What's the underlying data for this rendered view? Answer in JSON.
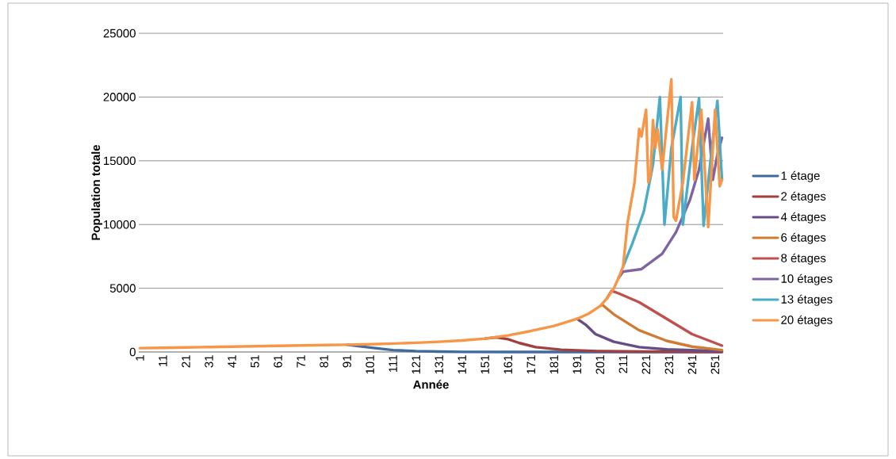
{
  "chart_data": {
    "type": "line",
    "xlabel": "Année",
    "ylabel": "Population totale",
    "xlim": [
      0.5,
      254.5
    ],
    "xticks": [
      1,
      11,
      21,
      31,
      41,
      51,
      61,
      71,
      81,
      91,
      101,
      111,
      121,
      131,
      141,
      151,
      161,
      171,
      181,
      191,
      201,
      211,
      221,
      231,
      241,
      251
    ],
    "ylim": [
      0,
      25000
    ],
    "yticks": [
      0,
      5000,
      10000,
      15000,
      20000,
      25000
    ],
    "grid": "y",
    "legend": "right",
    "marker": "none",
    "line_style": "solid",
    "series": [
      {
        "name": "1 étage",
        "color": "#3f6a9e",
        "x": [
          91,
          101,
          111,
          121,
          131,
          141,
          161,
          201,
          254
        ],
        "values": [
          570,
          350,
          150,
          70,
          30,
          10,
          0,
          0,
          0
        ]
      },
      {
        "name": "2 étages",
        "color": "#a0413f",
        "x": [
          151,
          156,
          161,
          166,
          173,
          184,
          200,
          220,
          254
        ],
        "values": [
          1050,
          1150,
          1000,
          700,
          380,
          180,
          70,
          30,
          10
        ]
      },
      {
        "name": "4 étages",
        "color": "#674d85",
        "x": [
          191,
          195,
          199,
          207,
          218,
          230,
          254
        ],
        "values": [
          2600,
          2100,
          1400,
          800,
          380,
          200,
          60
        ]
      },
      {
        "name": "6 étages",
        "color": "#cf7b33",
        "x": [
          201,
          202,
          207,
          218,
          230,
          241,
          254
        ],
        "values": [
          3600,
          3700,
          2950,
          1700,
          870,
          420,
          150
        ]
      },
      {
        "name": "8 étages",
        "color": "#c0504d",
        "x": [
          204,
          206,
          209,
          218,
          230,
          241,
          254
        ],
        "values": [
          4200,
          4800,
          4600,
          3900,
          2600,
          1400,
          500
        ]
      },
      {
        "name": "10 étages",
        "color": "#8064a2",
        "x": [
          209,
          211,
          219,
          228,
          234,
          240,
          244,
          248,
          250,
          252,
          254
        ],
        "values": [
          5800,
          6300,
          6500,
          7700,
          9400,
          11900,
          14300,
          18300,
          13500,
          15500,
          16800
        ]
      },
      {
        "name": "13 étages",
        "color": "#4bacc6",
        "x": [
          211,
          215,
          220,
          224,
          227,
          229,
          232,
          236,
          237,
          241,
          244,
          246,
          249,
          252,
          254
        ],
        "values": [
          6700,
          8500,
          11000,
          14700,
          20000,
          10000,
          16000,
          20000,
          10000,
          16000,
          19900,
          9900,
          15000,
          19700,
          13500
        ]
      },
      {
        "name": "20 étages",
        "color": "#f79646",
        "x": [
          1,
          11,
          21,
          31,
          41,
          51,
          61,
          71,
          81,
          91,
          101,
          111,
          121,
          131,
          141,
          151,
          161,
          171,
          181,
          191,
          196,
          201,
          204,
          207,
          209,
          211,
          213,
          216,
          218,
          219,
          221,
          222,
          223,
          224,
          225,
          226,
          228,
          232,
          233,
          234,
          237,
          241,
          242,
          245,
          248,
          251,
          253,
          254
        ],
        "values": [
          300,
          330,
          360,
          390,
          420,
          450,
          480,
          510,
          540,
          570,
          610,
          660,
          720,
          800,
          900,
          1050,
          1300,
          1650,
          2050,
          2600,
          3000,
          3600,
          4200,
          5000,
          5800,
          6700,
          10200,
          13300,
          17500,
          16900,
          19000,
          13300,
          14000,
          18200,
          16000,
          17500,
          14300,
          21400,
          10600,
          10300,
          13300,
          19600,
          13500,
          19000,
          9800,
          19000,
          13000,
          13500
        ]
      }
    ]
  }
}
